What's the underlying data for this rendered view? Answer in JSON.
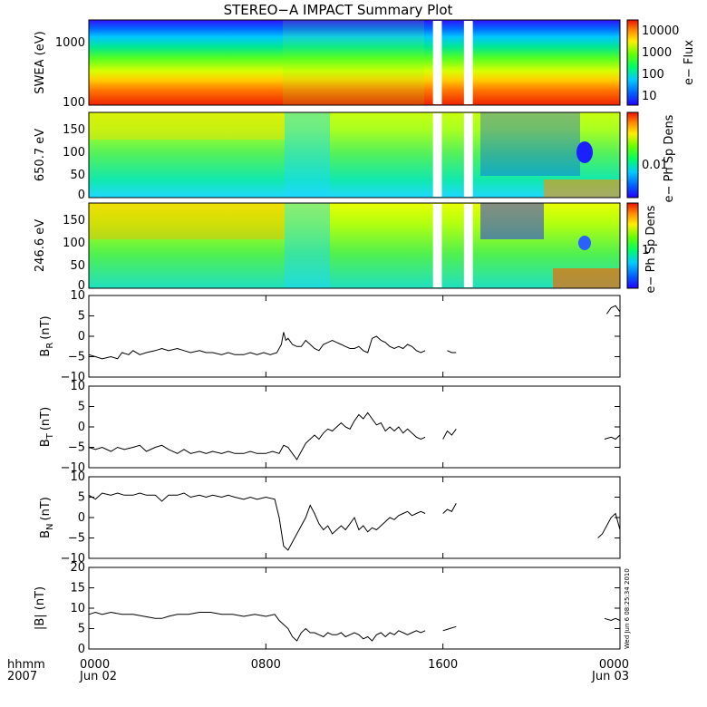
{
  "title": "STEREO−A IMPACT Summary Plot",
  "timestamp": "Wed Jun  6 08:25:34 2010",
  "time_axis": {
    "row_label_1": "hhmm",
    "row_label_2": "2007",
    "ticks": [
      {
        "hour": 0,
        "label": "0000",
        "sublabel": "Jun 02"
      },
      {
        "hour": 8,
        "label": "0800",
        "sublabel": ""
      },
      {
        "hour": 16,
        "label": "1600",
        "sublabel": ""
      },
      {
        "hour": 24,
        "label": "0000",
        "sublabel": "Jun 03"
      }
    ],
    "range_hours": [
      0,
      24
    ]
  },
  "chart_data": [
    {
      "type": "heatmap",
      "name": "swea",
      "ylabel": "SWEA (eV)",
      "yscale": "log",
      "ylim": [
        100,
        2000
      ],
      "yticks": [
        "100",
        "1000"
      ],
      "colorbar": {
        "label": "e− Flux",
        "scale": "log",
        "ticks": [
          "10",
          "100",
          "1000",
          "10000"
        ],
        "range": [
          3,
          20000
        ]
      },
      "data_gaps_hours": [
        [
          15.55,
          15.95
        ],
        [
          16.95,
          17.35
        ]
      ]
    },
    {
      "type": "heatmap",
      "name": "pad650",
      "ylabel": "650.7 eV",
      "ylim": [
        0,
        180
      ],
      "yticks": [
        "0",
        "50",
        "100",
        "150"
      ],
      "colorbar": {
        "label": "e− Ph Sp Dens",
        "scale": "log",
        "ticks": [
          "0.01"
        ]
      },
      "data_gaps_hours": [
        [
          15.55,
          15.95
        ],
        [
          16.95,
          17.35
        ]
      ]
    },
    {
      "type": "heatmap",
      "name": "pad246",
      "ylabel": "246.6 eV",
      "ylim": [
        0,
        180
      ],
      "yticks": [
        "0",
        "50",
        "100",
        "150"
      ],
      "colorbar": {
        "label": "e− Ph Sp Dens",
        "scale": "log",
        "ticks": [
          "1"
        ]
      },
      "data_gaps_hours": [
        [
          15.55,
          15.95
        ],
        [
          16.95,
          17.35
        ]
      ]
    },
    {
      "type": "line",
      "name": "br",
      "ylabel": "B",
      "ylabel_sub": "R",
      "ylabel_unit": "(nT)",
      "ylim": [
        -10,
        10
      ],
      "yticks": [
        "−10",
        "−5",
        "0",
        "5",
        "10"
      ],
      "segments": [
        [
          [
            0,
            -4.5
          ],
          [
            0.3,
            -5
          ],
          [
            0.6,
            -5.5
          ],
          [
            1,
            -5
          ],
          [
            1.3,
            -5.5
          ],
          [
            1.5,
            -4
          ],
          [
            1.8,
            -4.5
          ],
          [
            2,
            -3.5
          ],
          [
            2.3,
            -4.5
          ],
          [
            2.6,
            -4
          ],
          [
            3,
            -3.5
          ],
          [
            3.3,
            -3
          ],
          [
            3.6,
            -3.5
          ],
          [
            4,
            -3
          ],
          [
            4.3,
            -3.5
          ],
          [
            4.6,
            -4
          ],
          [
            5,
            -3.5
          ],
          [
            5.3,
            -4
          ],
          [
            5.6,
            -4
          ],
          [
            6,
            -4.5
          ],
          [
            6.3,
            -4
          ],
          [
            6.6,
            -4.5
          ],
          [
            7,
            -4.5
          ],
          [
            7.3,
            -4
          ],
          [
            7.6,
            -4.5
          ],
          [
            7.9,
            -4
          ],
          [
            8.2,
            -4.5
          ],
          [
            8.5,
            -4
          ],
          [
            8.7,
            -2
          ],
          [
            8.8,
            1
          ],
          [
            8.9,
            -1
          ],
          [
            9,
            -0.5
          ],
          [
            9.2,
            -2
          ],
          [
            9.4,
            -2.5
          ],
          [
            9.6,
            -2.5
          ],
          [
            9.8,
            -1
          ],
          [
            10,
            -2
          ],
          [
            10.2,
            -3
          ],
          [
            10.4,
            -3.5
          ],
          [
            10.6,
            -2
          ],
          [
            10.8,
            -1.5
          ],
          [
            11,
            -1
          ],
          [
            11.2,
            -1.5
          ],
          [
            11.4,
            -2
          ],
          [
            11.6,
            -2.5
          ],
          [
            11.8,
            -3
          ],
          [
            12,
            -3
          ],
          [
            12.2,
            -2.5
          ],
          [
            12.4,
            -3.5
          ],
          [
            12.6,
            -4
          ],
          [
            12.8,
            -0.5
          ],
          [
            13,
            0
          ],
          [
            13.2,
            -1
          ],
          [
            13.4,
            -1.5
          ],
          [
            13.6,
            -2.5
          ],
          [
            13.8,
            -3
          ],
          [
            14,
            -2.5
          ],
          [
            14.2,
            -3
          ],
          [
            14.4,
            -2
          ],
          [
            14.6,
            -2.5
          ],
          [
            14.8,
            -3.5
          ],
          [
            15,
            -4
          ],
          [
            15.2,
            -3.5
          ]
        ],
        [
          [
            16.2,
            -3.5
          ],
          [
            16.4,
            -4
          ],
          [
            16.6,
            -4
          ]
        ],
        [
          [
            23.4,
            5.5
          ],
          [
            23.6,
            7
          ],
          [
            23.8,
            7.5
          ],
          [
            24,
            6
          ]
        ]
      ]
    },
    {
      "type": "line",
      "name": "bt",
      "ylabel": "B",
      "ylabel_sub": "T",
      "ylabel_unit": "(nT)",
      "ylim": [
        -10,
        10
      ],
      "yticks": [
        "−10",
        "−5",
        "0",
        "5",
        "10"
      ],
      "segments": [
        [
          [
            0,
            -5
          ],
          [
            0.3,
            -5.5
          ],
          [
            0.6,
            -5
          ],
          [
            1,
            -6
          ],
          [
            1.3,
            -5
          ],
          [
            1.6,
            -5.5
          ],
          [
            2,
            -5
          ],
          [
            2.3,
            -4.5
          ],
          [
            2.6,
            -6
          ],
          [
            3,
            -5
          ],
          [
            3.3,
            -4.5
          ],
          [
            3.6,
            -5.5
          ],
          [
            4,
            -6.5
          ],
          [
            4.3,
            -5.5
          ],
          [
            4.6,
            -6.5
          ],
          [
            5,
            -6
          ],
          [
            5.3,
            -6.5
          ],
          [
            5.6,
            -6
          ],
          [
            6,
            -6.5
          ],
          [
            6.3,
            -6
          ],
          [
            6.6,
            -6.5
          ],
          [
            7,
            -6.5
          ],
          [
            7.3,
            -6
          ],
          [
            7.6,
            -6.5
          ],
          [
            8,
            -6.5
          ],
          [
            8.3,
            -6
          ],
          [
            8.6,
            -6.5
          ],
          [
            8.8,
            -4.5
          ],
          [
            9,
            -5
          ],
          [
            9.2,
            -6.5
          ],
          [
            9.4,
            -8
          ],
          [
            9.6,
            -6
          ],
          [
            9.8,
            -4
          ],
          [
            10,
            -3
          ],
          [
            10.2,
            -2
          ],
          [
            10.4,
            -3
          ],
          [
            10.6,
            -1.5
          ],
          [
            10.8,
            -0.5
          ],
          [
            11,
            -1
          ],
          [
            11.2,
            0
          ],
          [
            11.4,
            1
          ],
          [
            11.6,
            0
          ],
          [
            11.8,
            -0.5
          ],
          [
            12,
            1.5
          ],
          [
            12.2,
            3
          ],
          [
            12.4,
            2
          ],
          [
            12.6,
            3.5
          ],
          [
            12.8,
            2
          ],
          [
            13,
            0.5
          ],
          [
            13.2,
            1
          ],
          [
            13.4,
            -1
          ],
          [
            13.6,
            0
          ],
          [
            13.8,
            -1
          ],
          [
            14,
            0
          ],
          [
            14.2,
            -1.5
          ],
          [
            14.4,
            -0.5
          ],
          [
            14.6,
            -1.5
          ],
          [
            14.8,
            -2.5
          ],
          [
            15,
            -3
          ],
          [
            15.2,
            -2.5
          ]
        ],
        [
          [
            16.0,
            -3
          ],
          [
            16.2,
            -1
          ],
          [
            16.4,
            -2
          ],
          [
            16.6,
            -0.5
          ]
        ],
        [
          [
            23.3,
            -3
          ],
          [
            23.6,
            -2.5
          ],
          [
            23.8,
            -3
          ],
          [
            24,
            -2
          ]
        ]
      ]
    },
    {
      "type": "line",
      "name": "bn",
      "ylabel": "B",
      "ylabel_sub": "N",
      "ylabel_unit": "(nT)",
      "ylim": [
        -10,
        10
      ],
      "yticks": [
        "−10",
        "−5",
        "0",
        "5",
        "10"
      ],
      "segments": [
        [
          [
            0,
            5.5
          ],
          [
            0.3,
            4.5
          ],
          [
            0.6,
            6
          ],
          [
            1,
            5.5
          ],
          [
            1.3,
            6
          ],
          [
            1.6,
            5.5
          ],
          [
            2,
            5.5
          ],
          [
            2.3,
            6
          ],
          [
            2.6,
            5.5
          ],
          [
            3,
            5.5
          ],
          [
            3.3,
            4
          ],
          [
            3.6,
            5.5
          ],
          [
            4,
            5.5
          ],
          [
            4.3,
            6
          ],
          [
            4.6,
            5
          ],
          [
            5,
            5.5
          ],
          [
            5.3,
            5
          ],
          [
            5.6,
            5.5
          ],
          [
            6,
            5
          ],
          [
            6.3,
            5.5
          ],
          [
            6.6,
            5
          ],
          [
            7,
            4.5
          ],
          [
            7.3,
            5
          ],
          [
            7.6,
            4.5
          ],
          [
            8,
            5
          ],
          [
            8.4,
            4.5
          ],
          [
            8.6,
            0
          ],
          [
            8.8,
            -7
          ],
          [
            9,
            -8
          ],
          [
            9.2,
            -6
          ],
          [
            9.4,
            -4
          ],
          [
            9.6,
            -2
          ],
          [
            9.8,
            0
          ],
          [
            10,
            3
          ],
          [
            10.2,
            1
          ],
          [
            10.4,
            -1.5
          ],
          [
            10.6,
            -3
          ],
          [
            10.8,
            -2
          ],
          [
            11,
            -4
          ],
          [
            11.2,
            -3
          ],
          [
            11.4,
            -2
          ],
          [
            11.6,
            -3
          ],
          [
            11.8,
            -1.5
          ],
          [
            12,
            0
          ],
          [
            12.2,
            -3
          ],
          [
            12.4,
            -2
          ],
          [
            12.6,
            -3.5
          ],
          [
            12.8,
            -2.5
          ],
          [
            13,
            -3
          ],
          [
            13.2,
            -2
          ],
          [
            13.4,
            -1
          ],
          [
            13.6,
            0
          ],
          [
            13.8,
            -0.5
          ],
          [
            14,
            0.5
          ],
          [
            14.2,
            1
          ],
          [
            14.4,
            1.5
          ],
          [
            14.6,
            0.5
          ],
          [
            14.8,
            1
          ],
          [
            15,
            1.5
          ],
          [
            15.2,
            1
          ]
        ],
        [
          [
            16.0,
            1
          ],
          [
            16.2,
            2
          ],
          [
            16.4,
            1.5
          ],
          [
            16.6,
            3.5
          ]
        ],
        [
          [
            23.0,
            -5
          ],
          [
            23.2,
            -4
          ],
          [
            23.4,
            -2
          ],
          [
            23.6,
            0
          ],
          [
            23.8,
            1
          ],
          [
            24,
            -3
          ]
        ]
      ]
    },
    {
      "type": "line",
      "name": "bmag",
      "ylabel": "|B| (nT)",
      "ylim": [
        0,
        20
      ],
      "yticks": [
        "0",
        "5",
        "10",
        "15",
        "20"
      ],
      "segments": [
        [
          [
            0,
            8.5
          ],
          [
            0.3,
            9
          ],
          [
            0.6,
            8.5
          ],
          [
            1,
            9
          ],
          [
            1.5,
            8.5
          ],
          [
            2,
            8.5
          ],
          [
            2.5,
            8
          ],
          [
            3,
            7.5
          ],
          [
            3.3,
            7.5
          ],
          [
            3.6,
            8
          ],
          [
            4,
            8.5
          ],
          [
            4.5,
            8.5
          ],
          [
            5,
            9
          ],
          [
            5.5,
            9
          ],
          [
            6,
            8.5
          ],
          [
            6.5,
            8.5
          ],
          [
            7,
            8
          ],
          [
            7.5,
            8.5
          ],
          [
            8,
            8
          ],
          [
            8.4,
            8.5
          ],
          [
            8.6,
            7
          ],
          [
            8.8,
            6
          ],
          [
            9,
            5
          ],
          [
            9.2,
            3
          ],
          [
            9.4,
            2
          ],
          [
            9.6,
            4
          ],
          [
            9.8,
            5
          ],
          [
            10,
            4
          ],
          [
            10.2,
            4
          ],
          [
            10.4,
            3.5
          ],
          [
            10.6,
            3
          ],
          [
            10.8,
            4
          ],
          [
            11,
            3.5
          ],
          [
            11.2,
            3.5
          ],
          [
            11.4,
            4
          ],
          [
            11.6,
            3
          ],
          [
            11.8,
            3.5
          ],
          [
            12,
            4
          ],
          [
            12.2,
            3.5
          ],
          [
            12.4,
            2.5
          ],
          [
            12.6,
            3
          ],
          [
            12.8,
            2
          ],
          [
            13,
            3.5
          ],
          [
            13.2,
            4
          ],
          [
            13.4,
            3
          ],
          [
            13.6,
            4
          ],
          [
            13.8,
            3.5
          ],
          [
            14,
            4.5
          ],
          [
            14.2,
            4
          ],
          [
            14.4,
            3.5
          ],
          [
            14.6,
            4
          ],
          [
            14.8,
            4.5
          ],
          [
            15,
            4
          ],
          [
            15.2,
            4.5
          ]
        ],
        [
          [
            16.0,
            4.5
          ],
          [
            16.3,
            5
          ],
          [
            16.6,
            5.5
          ]
        ],
        [
          [
            23.3,
            7.5
          ],
          [
            23.6,
            7
          ],
          [
            23.8,
            7.5
          ],
          [
            24,
            7
          ]
        ]
      ]
    }
  ]
}
